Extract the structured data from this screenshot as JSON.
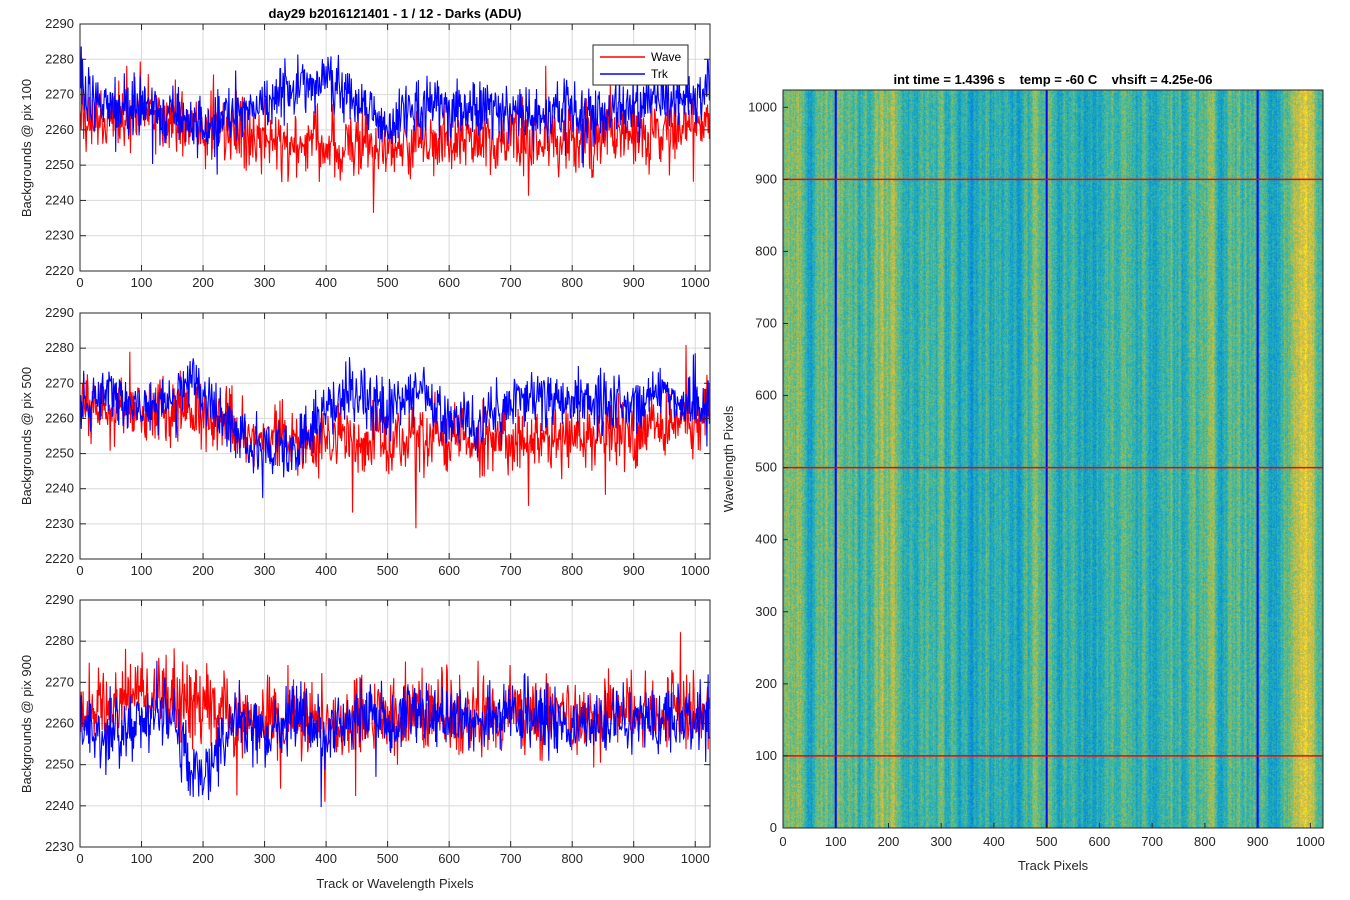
{
  "chart_data": [
    {
      "type": "line",
      "title": "day29 b2016121401 - 1 / 12 - Darks (ADU)",
      "ylabel": "Backgrounds @ pix 100",
      "xlabel": "",
      "xlim": [
        0,
        1024
      ],
      "ylim": [
        2220,
        2290
      ],
      "xticks": [
        "0",
        "100",
        "200",
        "300",
        "400",
        "500",
        "600",
        "700",
        "800",
        "900",
        "1000"
      ],
      "yticks": [
        "2220",
        "2230",
        "2240",
        "2250",
        "2260",
        "2270",
        "2280",
        "2290"
      ],
      "grid": true,
      "legend_position": "top-right",
      "series": [
        {
          "name": "Wave",
          "color": "#ff0000",
          "mean": 2259,
          "noise": 6,
          "anchors": [
            [
              0,
              2262
            ],
            [
              100,
              2265
            ],
            [
              200,
              2261
            ],
            [
              300,
              2257
            ],
            [
              400,
              2255
            ],
            [
              500,
              2256
            ],
            [
              600,
              2257
            ],
            [
              700,
              2258
            ],
            [
              800,
              2257
            ],
            [
              900,
              2259
            ],
            [
              1024,
              2262
            ]
          ]
        },
        {
          "name": "Trk",
          "color": "#0000ff",
          "mean": 2264,
          "noise": 5,
          "anchors": [
            [
              0,
              2270
            ],
            [
              50,
              2268
            ],
            [
              100,
              2266
            ],
            [
              150,
              2264
            ],
            [
              200,
              2260
            ],
            [
              250,
              2264
            ],
            [
              300,
              2268
            ],
            [
              350,
              2272
            ],
            [
              400,
              2275
            ],
            [
              450,
              2268
            ],
            [
              500,
              2262
            ],
            [
              550,
              2268
            ],
            [
              600,
              2266
            ],
            [
              650,
              2265
            ],
            [
              700,
              2265
            ],
            [
              750,
              2264
            ],
            [
              800,
              2265
            ],
            [
              850,
              2264
            ],
            [
              900,
              2267
            ],
            [
              950,
              2268
            ],
            [
              1024,
              2270
            ]
          ]
        }
      ]
    },
    {
      "type": "line",
      "title": "",
      "ylabel": "Backgrounds @ pix 500",
      "xlabel": "",
      "xlim": [
        0,
        1024
      ],
      "ylim": [
        2220,
        2290
      ],
      "xticks": [
        "0",
        "100",
        "200",
        "300",
        "400",
        "500",
        "600",
        "700",
        "800",
        "900",
        "1000"
      ],
      "yticks": [
        "2220",
        "2230",
        "2240",
        "2250",
        "2260",
        "2270",
        "2280",
        "2290"
      ],
      "grid": true,
      "series": [
        {
          "name": "Wave",
          "color": "#ff0000",
          "mean": 2257,
          "noise": 6,
          "anchors": [
            [
              0,
              2263
            ],
            [
              100,
              2262
            ],
            [
              200,
              2262
            ],
            [
              300,
              2254
            ],
            [
              400,
              2253
            ],
            [
              500,
              2254
            ],
            [
              600,
              2255
            ],
            [
              700,
              2253
            ],
            [
              800,
              2255
            ],
            [
              900,
              2256
            ],
            [
              1024,
              2260
            ]
          ]
        },
        {
          "name": "Trk",
          "color": "#0000ff",
          "mean": 2262,
          "noise": 5,
          "anchors": [
            [
              0,
              2263
            ],
            [
              50,
              2268
            ],
            [
              100,
              2262
            ],
            [
              150,
              2264
            ],
            [
              180,
              2272
            ],
            [
              220,
              2262
            ],
            [
              260,
              2255
            ],
            [
              300,
              2252
            ],
            [
              350,
              2250
            ],
            [
              400,
              2263
            ],
            [
              450,
              2268
            ],
            [
              500,
              2262
            ],
            [
              550,
              2268
            ],
            [
              600,
              2259
            ],
            [
              650,
              2258
            ],
            [
              700,
              2265
            ],
            [
              750,
              2266
            ],
            [
              800,
              2265
            ],
            [
              850,
              2265
            ],
            [
              900,
              2265
            ],
            [
              950,
              2267
            ],
            [
              1024,
              2262
            ]
          ]
        }
      ]
    },
    {
      "type": "line",
      "title": "",
      "ylabel": "Backgrounds @ pix 900",
      "xlabel": "Track or Wavelength Pixels",
      "xlim": [
        0,
        1024
      ],
      "ylim": [
        2230,
        2290
      ],
      "xticks": [
        "0",
        "100",
        "200",
        "300",
        "400",
        "500",
        "600",
        "700",
        "800",
        "900",
        "1000"
      ],
      "yticks": [
        "2230",
        "2240",
        "2250",
        "2260",
        "2270",
        "2280",
        "2290"
      ],
      "grid": true,
      "series": [
        {
          "name": "Wave",
          "color": "#ff0000",
          "mean": 2262,
          "noise": 6,
          "anchors": [
            [
              0,
              2262
            ],
            [
              100,
              2268
            ],
            [
              200,
              2264
            ],
            [
              300,
              2261
            ],
            [
              400,
              2260
            ],
            [
              500,
              2262
            ],
            [
              600,
              2262
            ],
            [
              700,
              2263
            ],
            [
              800,
              2261
            ],
            [
              900,
              2263
            ],
            [
              1024,
              2262
            ]
          ]
        },
        {
          "name": "Trk",
          "color": "#0000ff",
          "mean": 2259,
          "noise": 5,
          "anchors": [
            [
              0,
              2258
            ],
            [
              50,
              2256
            ],
            [
              100,
              2262
            ],
            [
              150,
              2262
            ],
            [
              180,
              2250
            ],
            [
              210,
              2247
            ],
            [
              250,
              2262
            ],
            [
              300,
              2257
            ],
            [
              350,
              2262
            ],
            [
              400,
              2257
            ],
            [
              450,
              2263
            ],
            [
              500,
              2259
            ],
            [
              550,
              2263
            ],
            [
              600,
              2262
            ],
            [
              650,
              2260
            ],
            [
              700,
              2262
            ],
            [
              750,
              2260
            ],
            [
              800,
              2259
            ],
            [
              850,
              2260
            ],
            [
              900,
              2261
            ],
            [
              950,
              2261
            ],
            [
              1024,
              2262
            ]
          ]
        }
      ]
    },
    {
      "type": "heatmap",
      "title": "int time = 1.4396 s    temp = -60 C    vhsift = 4.25e-06",
      "xlabel": "Track Pixels",
      "ylabel": "Wavelength Pixels",
      "xlim": [
        0,
        1024
      ],
      "ylim": [
        0,
        1024
      ],
      "xticks": [
        "0",
        "100",
        "200",
        "300",
        "400",
        "500",
        "600",
        "700",
        "800",
        "900",
        "1000"
      ],
      "yticks": [
        "0",
        "100",
        "200",
        "300",
        "400",
        "500",
        "600",
        "700",
        "800",
        "900",
        "1000"
      ],
      "colormap": "parula",
      "vertical_markers": {
        "color": "#0000ff",
        "x": [
          100,
          500,
          900
        ]
      },
      "horizontal_markers": {
        "color": "#ff0000",
        "y": [
          100,
          500,
          900
        ]
      }
    }
  ]
}
